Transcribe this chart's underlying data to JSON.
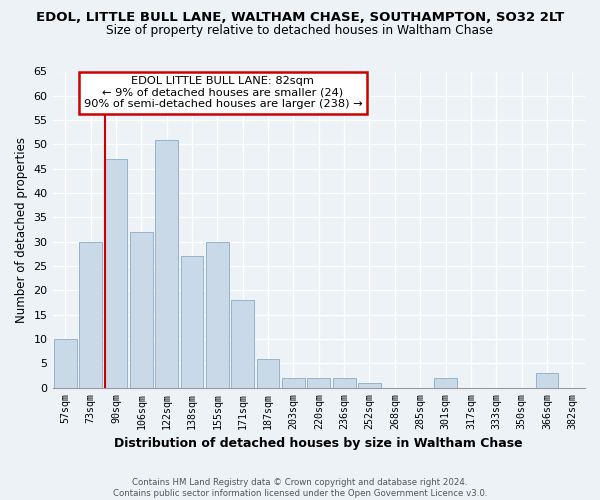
{
  "title": "EDOL, LITTLE BULL LANE, WALTHAM CHASE, SOUTHAMPTON, SO32 2LT",
  "subtitle": "Size of property relative to detached houses in Waltham Chase",
  "xlabel": "Distribution of detached houses by size in Waltham Chase",
  "ylabel": "Number of detached properties",
  "bin_labels": [
    "57sqm",
    "73sqm",
    "90sqm",
    "106sqm",
    "122sqm",
    "138sqm",
    "155sqm",
    "171sqm",
    "187sqm",
    "203sqm",
    "220sqm",
    "236sqm",
    "252sqm",
    "268sqm",
    "285sqm",
    "301sqm",
    "317sqm",
    "333sqm",
    "350sqm",
    "366sqm",
    "382sqm"
  ],
  "bar_heights": [
    10,
    30,
    47,
    32,
    51,
    27,
    30,
    18,
    6,
    2,
    2,
    2,
    1,
    0,
    0,
    2,
    0,
    0,
    0,
    3,
    0
  ],
  "bar_color": "#cad9e8",
  "bar_edge_color": "#93b4cf",
  "vline_color": "#cc0000",
  "vline_x_index": 2,
  "ylim": [
    0,
    65
  ],
  "yticks": [
    0,
    5,
    10,
    15,
    20,
    25,
    30,
    35,
    40,
    45,
    50,
    55,
    60,
    65
  ],
  "annotation_title": "EDOL LITTLE BULL LANE: 82sqm",
  "annotation_line1": "← 9% of detached houses are smaller (24)",
  "annotation_line2": "90% of semi-detached houses are larger (238) →",
  "footer_line1": "Contains HM Land Registry data © Crown copyright and database right 2024.",
  "footer_line2": "Contains public sector information licensed under the Open Government Licence v3.0.",
  "background_color": "#edf2f7",
  "grid_color": "#ffffff"
}
